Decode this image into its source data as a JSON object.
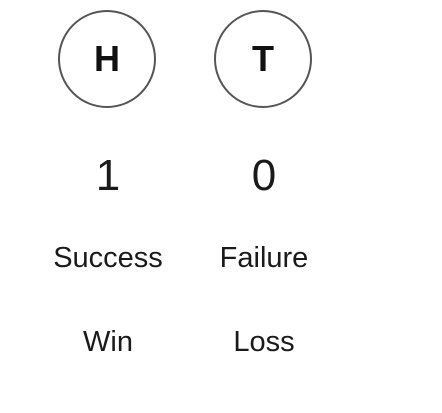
{
  "outcomes": [
    {
      "symbol": "H",
      "count": "1",
      "result": "Success",
      "meaning": "Win"
    },
    {
      "symbol": "T",
      "count": "0",
      "result": "Failure",
      "meaning": "Loss"
    }
  ],
  "colors": {
    "circle_border": "#555555",
    "text": "#1a1a1a"
  }
}
